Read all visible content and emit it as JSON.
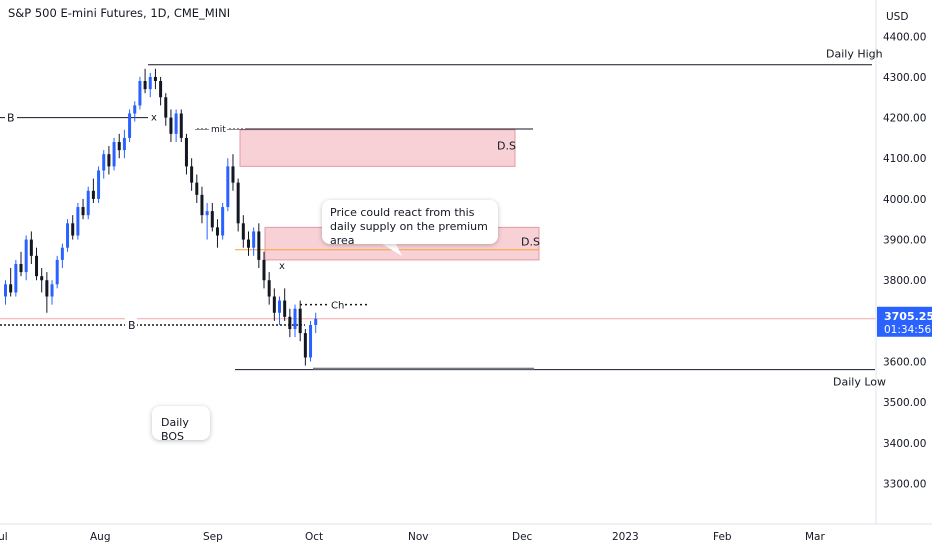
{
  "title": "S&P 500 E-mini Futures, 1D, CME_MINI",
  "currency": "USD",
  "price_label": "3705.25",
  "countdown": "01:34:56",
  "colors": {
    "up": "#2962ff",
    "down": "#131722",
    "zone_fill": "#f5c6cb",
    "zone_border": "#e59aa4",
    "price_line": "#f5a6a6",
    "mid_line": "#f7a23b",
    "price_label_bg": "#2962ff"
  },
  "annotations": {
    "daily_high": "Daily High",
    "daily_low": "Daily Low",
    "ds_upper": "D.S",
    "ds_lower": "D.S",
    "b_upper": "B",
    "b_lower": "B",
    "mit": "mit",
    "x_upper": "x",
    "x_lower": "x",
    "ch": "Ch",
    "callout_supply": "Price could react from this daily supply on the premium area",
    "callout_bos": "Daily BOS"
  },
  "chart_data": {
    "type": "candlestick",
    "title": "S&P 500 E-mini Futures, 1D, CME_MINI",
    "ylabel": "USD",
    "ylim": [
      3230,
      4440
    ],
    "y_ticks": [
      4400,
      4300,
      4200,
      4100,
      4000,
      3900,
      3800,
      3700,
      3600,
      3500,
      3400,
      3300
    ],
    "y_tick_labels": [
      "4400.00",
      "4300.00",
      "4200.00",
      "4100.00",
      "4000.00",
      "3900.00",
      "3800.00",
      "3700.00",
      "3600.00",
      "3500.00",
      "3400.00",
      "3300.00"
    ],
    "x_labels": [
      "Jul",
      "Aug",
      "Sep",
      "Oct",
      "Nov",
      "Dec",
      "2023",
      "Feb",
      "Mar"
    ],
    "last_price": 3705.25,
    "candles": [
      [
        3760,
        3800,
        3740,
        3790
      ],
      [
        3790,
        3830,
        3760,
        3770
      ],
      [
        3770,
        3850,
        3760,
        3840
      ],
      [
        3840,
        3870,
        3810,
        3820
      ],
      [
        3820,
        3910,
        3800,
        3900
      ],
      [
        3900,
        3920,
        3840,
        3860
      ],
      [
        3860,
        3880,
        3800,
        3810
      ],
      [
        3810,
        3830,
        3770,
        3800
      ],
      [
        3800,
        3820,
        3720,
        3760
      ],
      [
        3760,
        3800,
        3740,
        3790
      ],
      [
        3790,
        3860,
        3780,
        3850
      ],
      [
        3850,
        3890,
        3830,
        3880
      ],
      [
        3880,
        3950,
        3870,
        3940
      ],
      [
        3940,
        3960,
        3900,
        3910
      ],
      [
        3910,
        3990,
        3900,
        3980
      ],
      [
        3980,
        4000,
        3950,
        3960
      ],
      [
        3960,
        4030,
        3950,
        4020
      ],
      [
        4020,
        4050,
        3990,
        4000
      ],
      [
        4000,
        4080,
        3990,
        4070
      ],
      [
        4070,
        4120,
        4050,
        4110
      ],
      [
        4110,
        4130,
        4060,
        4080
      ],
      [
        4080,
        4150,
        4070,
        4140
      ],
      [
        4140,
        4160,
        4100,
        4120
      ],
      [
        4120,
        4170,
        4100,
        4150
      ],
      [
        4150,
        4220,
        4140,
        4210
      ],
      [
        4210,
        4240,
        4190,
        4230
      ],
      [
        4230,
        4300,
        4220,
        4290
      ],
      [
        4290,
        4320,
        4260,
        4270
      ],
      [
        4270,
        4310,
        4250,
        4300
      ],
      [
        4300,
        4320,
        4270,
        4290
      ],
      [
        4290,
        4300,
        4230,
        4250
      ],
      [
        4250,
        4260,
        4180,
        4200
      ],
      [
        4200,
        4220,
        4140,
        4160
      ],
      [
        4160,
        4220,
        4140,
        4210
      ],
      [
        4210,
        4220,
        4140,
        4150
      ],
      [
        4150,
        4160,
        4060,
        4080
      ],
      [
        4080,
        4100,
        4020,
        4040
      ],
      [
        4040,
        4060,
        3990,
        4010
      ],
      [
        4010,
        4030,
        3940,
        3960
      ],
      [
        3960,
        3990,
        3900,
        3970
      ],
      [
        3970,
        3990,
        3920,
        3930
      ],
      [
        3930,
        3950,
        3880,
        3910
      ],
      [
        3910,
        3990,
        3900,
        3980
      ],
      [
        3980,
        4100,
        3970,
        4080
      ],
      [
        4080,
        4110,
        4020,
        4040
      ],
      [
        4040,
        4050,
        3920,
        3940
      ],
      [
        3940,
        3960,
        3880,
        3900
      ],
      [
        3900,
        3920,
        3860,
        3880
      ],
      [
        3880,
        3930,
        3860,
        3920
      ],
      [
        3920,
        3940,
        3830,
        3850
      ],
      [
        3850,
        3870,
        3780,
        3800
      ],
      [
        3800,
        3820,
        3740,
        3760
      ],
      [
        3760,
        3780,
        3700,
        3720
      ],
      [
        3720,
        3760,
        3690,
        3750
      ],
      [
        3750,
        3780,
        3700,
        3710
      ],
      [
        3710,
        3730,
        3660,
        3680
      ],
      [
        3680,
        3740,
        3660,
        3730
      ],
      [
        3730,
        3750,
        3650,
        3670
      ],
      [
        3670,
        3680,
        3590,
        3610
      ],
      [
        3610,
        3700,
        3600,
        3690
      ],
      [
        3690,
        3720,
        3670,
        3705.25
      ]
    ],
    "zones": [
      {
        "label": "D.S",
        "top": 4170,
        "bottom": 4080
      },
      {
        "label": "D.S",
        "top": 3930,
        "bottom": 3850
      }
    ],
    "levels": [
      {
        "label": "Daily High",
        "value": 4330
      },
      {
        "label": "Daily Low",
        "value": 3580
      },
      {
        "label": "B",
        "value": 4200
      },
      {
        "label": "B",
        "value": 3690
      },
      {
        "label": "Ch",
        "value": 3740
      }
    ]
  }
}
